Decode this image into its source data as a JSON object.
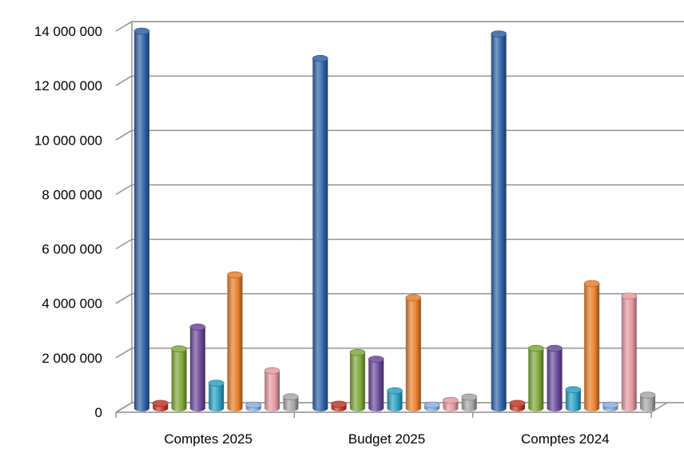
{
  "chart_data": {
    "type": "bar",
    "title": "",
    "xlabel": "",
    "ylabel": "",
    "ylim": [
      0,
      14000000
    ],
    "yticks": [
      0,
      2000000,
      4000000,
      6000000,
      8000000,
      10000000,
      12000000,
      14000000
    ],
    "ytick_labels": [
      "0",
      "2 000 000",
      "4 000 000",
      "6 000 000",
      "8 000 000",
      "10 000 000",
      "12 000 000",
      "14 000 000"
    ],
    "categories": [
      "Comptes 2025",
      "Budget 2025",
      "Comptes 2024"
    ],
    "grid": true,
    "legend": "none",
    "style": "3d-cylinder",
    "series": [
      {
        "color": "#2e62a8",
        "values": [
          13850000,
          12850000,
          13750000
        ]
      },
      {
        "color": "#c0392b",
        "values": [
          180000,
          150000,
          180000
        ]
      },
      {
        "color": "#7ea83a",
        "values": [
          2180000,
          2050000,
          2200000
        ]
      },
      {
        "color": "#6a4a9a",
        "values": [
          2980000,
          1800000,
          2200000
        ]
      },
      {
        "color": "#2aa0c2",
        "values": [
          920000,
          640000,
          680000
        ]
      },
      {
        "color": "#e8802c",
        "values": [
          4900000,
          4060000,
          4580000
        ]
      },
      {
        "color": "#8aaee0",
        "values": [
          40000,
          20000,
          70000
        ]
      },
      {
        "color": "#e49aa0",
        "values": [
          1380000,
          290000,
          4120000
        ]
      },
      {
        "color": "#a6a6a6",
        "values": [
          420000,
          410000,
          480000
        ]
      }
    ]
  }
}
